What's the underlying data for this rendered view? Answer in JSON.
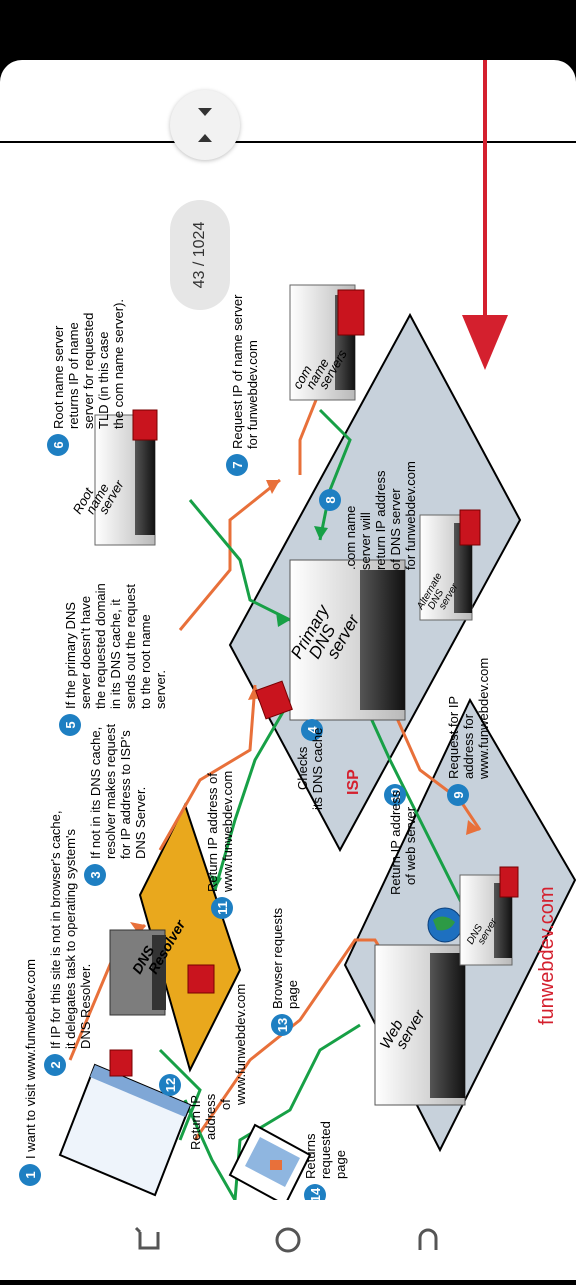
{
  "viewer": {
    "page_counter": "43 / 1024"
  },
  "diagram": {
    "steps": [
      {
        "num": "1",
        "text": [
          "I want to visit www.funwebdev.com"
        ]
      },
      {
        "num": "2",
        "text": [
          "If IP for this site is not in browser's cache,",
          "it delegates task to operating system's",
          "DNS Resolver."
        ]
      },
      {
        "num": "3",
        "text": [
          "If not in its DNS cache,",
          "resolver makes request",
          "for IP address to ISP's",
          "DNS Server."
        ]
      },
      {
        "num": "4",
        "text": [
          "Checks",
          "its DNS cache"
        ]
      },
      {
        "num": "5",
        "text": [
          "If the primary DNS",
          "server doesn't have",
          "the requested domain",
          "in its DNS cache, it",
          "sends out the request",
          "to the root name",
          "server."
        ]
      },
      {
        "num": "6",
        "text": [
          "Root name server",
          "returns IP of name",
          "server for requested",
          "TLD (in this case",
          "the com name server)."
        ]
      },
      {
        "num": "7",
        "text": [
          "Request IP of name server",
          "for funwebdev.com"
        ]
      },
      {
        "num": "8",
        "text": [
          ".com name",
          "server will",
          "return IP address",
          "of DNS server",
          "for funwebdev.com"
        ]
      },
      {
        "num": "9",
        "text": [
          "Request for IP",
          "address for",
          "www.funwebdev.com"
        ]
      },
      {
        "num": "10",
        "text": [
          "Return IP address",
          "of web server"
        ]
      },
      {
        "num": "11",
        "text": [
          "Return IP address of",
          "www.funwebdev.com"
        ]
      },
      {
        "num": "12",
        "text": [
          "Return IP",
          "address",
          "of",
          "www.funwebdev.com"
        ]
      },
      {
        "num": "13",
        "text": [
          "Browser requests",
          "page"
        ]
      },
      {
        "num": "14",
        "text": [
          "Returns",
          "requested",
          "page"
        ]
      }
    ],
    "servers": {
      "dns_resolver": [
        "DNS",
        "Resolver"
      ],
      "primary_dns": [
        "Primary",
        "DNS",
        "server"
      ],
      "root": [
        "Root",
        "name",
        "server"
      ],
      "com": [
        "com",
        "name",
        "servers"
      ],
      "alternate": [
        "Alternate",
        "DNS",
        "server"
      ],
      "web": [
        "Web",
        "server"
      ],
      "dns_small": [
        "DNS",
        "server"
      ]
    },
    "regions": {
      "isp": "ISP",
      "funwebdev": "funwebdev.com"
    },
    "colors": {
      "badge": "#1e7fc2",
      "orange_arrow": "#e8703a",
      "green_arrow": "#17a046",
      "resolver_fill": "#e9a81d",
      "region_fill": "#c7d1db",
      "scroll_arrow": "#d4202e"
    }
  }
}
